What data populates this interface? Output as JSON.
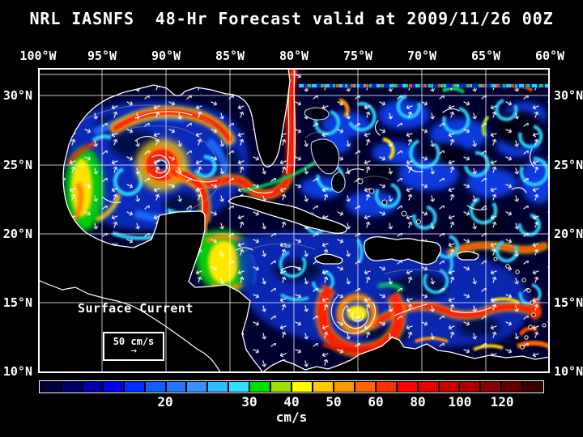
{
  "title": "NRL IASNFS  48-Hr Forecast valid at 2009/11/26 00Z",
  "map": {
    "lon_labels": [
      "100°W",
      "95°W",
      "90°W",
      "85°W",
      "80°W",
      "75°W",
      "70°W",
      "65°W",
      "60°W"
    ],
    "lat_labels": [
      "30°N",
      "25°N",
      "20°N",
      "15°N",
      "10°N"
    ],
    "annotation": "Surface Current",
    "scale_label": "50 cm/s",
    "scale_arrow": "→"
  },
  "colorbar": {
    "unit": "cm/s",
    "tick_labels": [
      "20",
      "30",
      "40",
      "50",
      "60",
      "80",
      "100",
      "120"
    ],
    "tick_positions": [
      0.25,
      0.4167,
      0.5,
      0.5833,
      0.6667,
      0.75,
      0.8333,
      0.9167
    ],
    "segments": [
      "#000038",
      "#000068",
      "#0000a8",
      "#0000f0",
      "#0030ff",
      "#1060ff",
      "#2277ff",
      "#3392ff",
      "#33bbff",
      "#2ee2ff",
      "#00e000",
      "#9ae000",
      "#ffff00",
      "#ffc800",
      "#ff9800",
      "#ff6400",
      "#ff3000",
      "#ff0000",
      "#e80000",
      "#cc0000",
      "#ac0000",
      "#8b0000",
      "#620000",
      "#3a0000"
    ]
  },
  "colors": {
    "background": "#000000",
    "ocean_base": "#000030",
    "grid": "#ffffff",
    "coastline": "#ffffff",
    "land": "#000000",
    "bathymetry_contours": "#8a8a8a"
  }
}
